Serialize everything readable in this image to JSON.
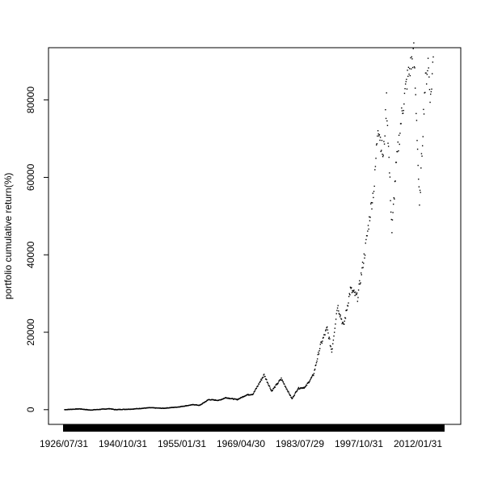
{
  "chart_data": {
    "type": "scatter",
    "title": "",
    "xlabel": "",
    "ylabel": "portfolio cumulative return(%)",
    "x_start": "1926/07/31",
    "x_end": "2014/12/31",
    "x_tick_labels": [
      "1926/07/31",
      "1940/10/31",
      "1955/01/31",
      "1969/04/30",
      "1983/07/29",
      "1997/10/31",
      "2012/01/31"
    ],
    "y_ticks": [
      0,
      20000,
      40000,
      60000,
      80000
    ],
    "y_tick_labels": [
      "0",
      "20000",
      "40000",
      "60000",
      "80000"
    ],
    "ylim": [
      -3800,
      93500
    ],
    "grid": false,
    "series": [
      {
        "points": [
          [
            "1926/07/31",
            0
          ],
          [
            "1930/01/31",
            200
          ],
          [
            "1932/06/30",
            -100
          ],
          [
            "1937/02/27",
            250
          ],
          [
            "1938/03/31",
            0
          ],
          [
            "1942/04/30",
            150
          ],
          [
            "1946/05/31",
            500
          ],
          [
            "1949/06/30",
            350
          ],
          [
            "1953/01/31",
            700
          ],
          [
            "1956/07/31",
            1300
          ],
          [
            "1957/12/31",
            1100
          ],
          [
            "1960/01/31",
            2600
          ],
          [
            "1962/06/29",
            2400
          ],
          [
            "1964/01/31",
            3100
          ],
          [
            "1966/09/30",
            2600
          ],
          [
            "1968/11/29",
            3800
          ],
          [
            "1970/05/29",
            4000
          ],
          [
            "1972/12/29",
            9000
          ],
          [
            "1974/09/30",
            4800
          ],
          [
            "1976/12/31",
            8000
          ],
          [
            "1979/06/29",
            2800
          ],
          [
            "1980/11/28",
            5500
          ],
          [
            "1982/07/30",
            5800
          ],
          [
            "1984/06/29",
            9000
          ],
          [
            "1986/01/31",
            16500
          ],
          [
            "1987/08/31",
            21000
          ],
          [
            "1988/09/30",
            15000
          ],
          [
            "1990/01/31",
            27000
          ],
          [
            "1991/06/28",
            21500
          ],
          [
            "1993/01/29",
            31000
          ],
          [
            "1994/09/30",
            29000
          ],
          [
            "1996/06/28",
            41000
          ],
          [
            "1997/10/31",
            52000
          ],
          [
            "1998/08/31",
            58000
          ],
          [
            "1999/06/30",
            74000
          ],
          [
            "2000/09/29",
            65000
          ],
          [
            "2001/06/29",
            80000
          ],
          [
            "2002/09/30",
            46000
          ],
          [
            "2003/08/29",
            62000
          ],
          [
            "2004/12/31",
            76000
          ],
          [
            "2006/03/31",
            85000
          ],
          [
            "2007/10/31",
            92000
          ],
          [
            "2008/06/30",
            75000
          ],
          [
            "2009/02/27",
            52000
          ],
          [
            "2010/04/30",
            82000
          ],
          [
            "2011/02/28",
            90000
          ],
          [
            "2011/09/30",
            80000
          ],
          [
            "2012/06/29",
            93000
          ]
        ]
      }
    ]
  }
}
